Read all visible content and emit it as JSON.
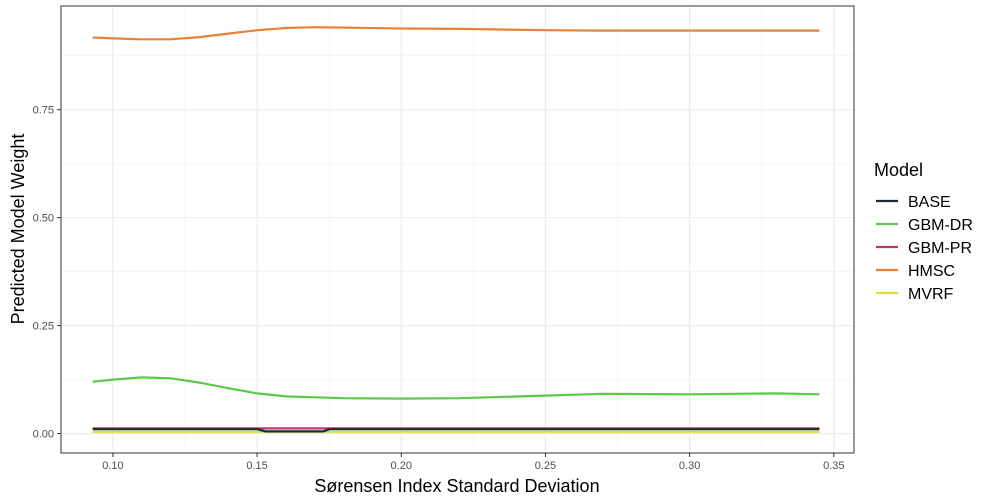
{
  "chart_data": {
    "type": "line",
    "title": "",
    "xlabel": "Sørensen Index Standard Deviation",
    "ylabel": "Predicted Model Weight",
    "xlim": [
      0.082,
      0.357
    ],
    "ylim": [
      -0.045,
      0.99
    ],
    "x_ticks": [
      0.1,
      0.15,
      0.2,
      0.25,
      0.3,
      0.35
    ],
    "x_tick_labels": [
      "0.10",
      "0.15",
      "0.20",
      "0.25",
      "0.30",
      "0.35"
    ],
    "y_ticks": [
      0.0,
      0.25,
      0.5,
      0.75
    ],
    "y_tick_labels": [
      "0.00",
      "0.25",
      "0.50",
      "0.75"
    ],
    "grid": true,
    "legend": {
      "title": "Model",
      "position": "right"
    },
    "series": [
      {
        "name": "BASE",
        "color": "#1a2a3a",
        "x": [
          0.093,
          0.15,
          0.153,
          0.173,
          0.175,
          0.345
        ],
        "y": [
          0.01,
          0.01,
          0.005,
          0.005,
          0.01,
          0.01
        ]
      },
      {
        "name": "GBM-DR",
        "color": "#5cc84a",
        "x": [
          0.093,
          0.1,
          0.11,
          0.12,
          0.13,
          0.14,
          0.15,
          0.16,
          0.17,
          0.18,
          0.2,
          0.22,
          0.25,
          0.27,
          0.3,
          0.33,
          0.345
        ],
        "y": [
          0.12,
          0.125,
          0.13,
          0.128,
          0.118,
          0.105,
          0.093,
          0.086,
          0.084,
          0.082,
          0.081,
          0.082,
          0.088,
          0.092,
          0.091,
          0.093,
          0.091
        ]
      },
      {
        "name": "GBM-PR",
        "color": "#b83a6a",
        "x": [
          0.093,
          0.345
        ],
        "y": [
          0.012,
          0.012
        ]
      },
      {
        "name": "HMSC",
        "color": "#e8823a",
        "x": [
          0.093,
          0.1,
          0.11,
          0.12,
          0.13,
          0.14,
          0.15,
          0.16,
          0.17,
          0.18,
          0.2,
          0.22,
          0.25,
          0.27,
          0.3,
          0.33,
          0.345
        ],
        "y": [
          0.917,
          0.915,
          0.913,
          0.913,
          0.918,
          0.926,
          0.934,
          0.939,
          0.941,
          0.94,
          0.938,
          0.937,
          0.934,
          0.933,
          0.933,
          0.933,
          0.933
        ]
      },
      {
        "name": "MVRF",
        "color": "#dede3a",
        "x": [
          0.093,
          0.345
        ],
        "y": [
          0.004,
          0.004
        ]
      }
    ]
  }
}
